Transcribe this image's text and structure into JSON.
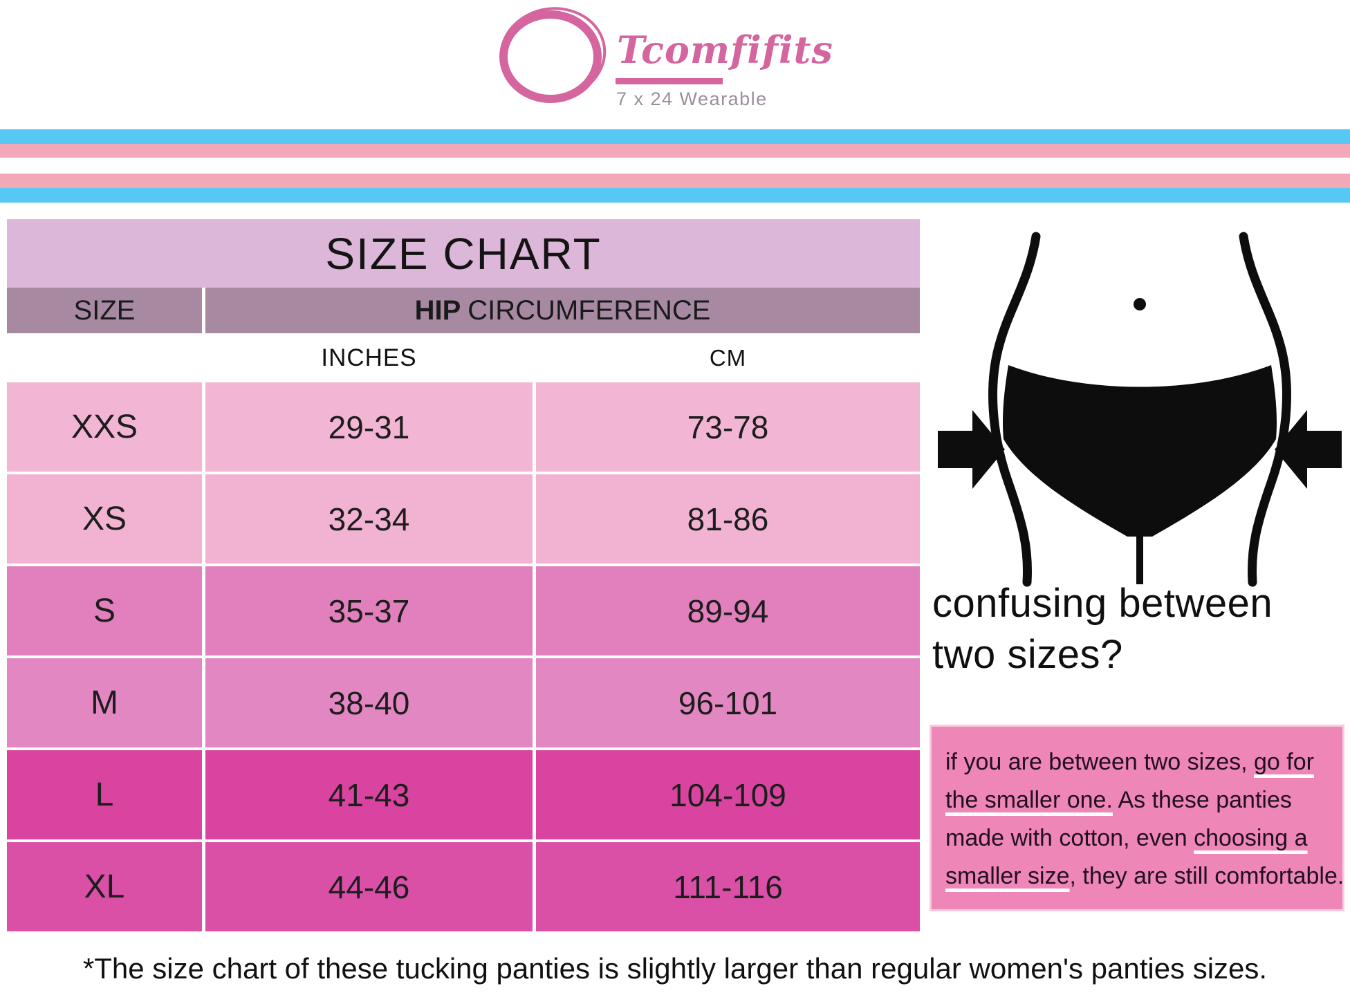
{
  "brand": {
    "name": "Tcomfifits",
    "tagline": "7 x 24 Wearable",
    "color": "#d4659e",
    "tagline_color": "#9a8d9a"
  },
  "flag": {
    "blue": "#55c8f3",
    "pink": "#f3a8b9",
    "white": "#ffffff"
  },
  "table": {
    "title": "SIZE CHART",
    "title_bg": "#dcb7d9",
    "header_bg": "#a78aa2",
    "col_size": "SIZE",
    "col_hip_bold": "HIP",
    "col_hip_rest": "CIRCUMFERENCE",
    "unit_inches": "INCHES",
    "unit_cm": "CM",
    "rows": [
      {
        "size": "XXS",
        "inches": "29-31",
        "cm": "73-78",
        "color": "#f2b5d3"
      },
      {
        "size": "XS",
        "inches": "32-34",
        "cm": "81-86",
        "color": "#f2b3d2"
      },
      {
        "size": "S",
        "inches": "35-37",
        "cm": "89-94",
        "color": "#e180bc"
      },
      {
        "size": "M",
        "inches": "38-40",
        "cm": "96-101",
        "color": "#e287c1"
      },
      {
        "size": "L",
        "inches": "41-43",
        "cm": "104-109",
        "color": "#d8449f"
      },
      {
        "size": "XL",
        "inches": "44-46",
        "cm": "111-116",
        "color": "#d950a6"
      }
    ]
  },
  "right": {
    "heading_line1": "confusing between",
    "heading_line2": "two sizes?",
    "tip_bg": "#ee86b7",
    "tip_lines": [
      [
        {
          "t": "if you are between two sizes, "
        },
        {
          "t": "go for",
          "u": true
        }
      ],
      [
        {
          "t": "the smaller one.",
          "u": true
        },
        {
          "t": " As these panties"
        }
      ],
      [
        {
          "t": "made with cotton, even "
        },
        {
          "t": "choosing a",
          "u": true
        }
      ],
      [
        {
          "t": "smaller size",
          "u": true
        },
        {
          "t": ", they are still comfortable."
        }
      ]
    ]
  },
  "footnote": "*The size chart of these tucking panties is slightly larger than regular women's panties sizes."
}
